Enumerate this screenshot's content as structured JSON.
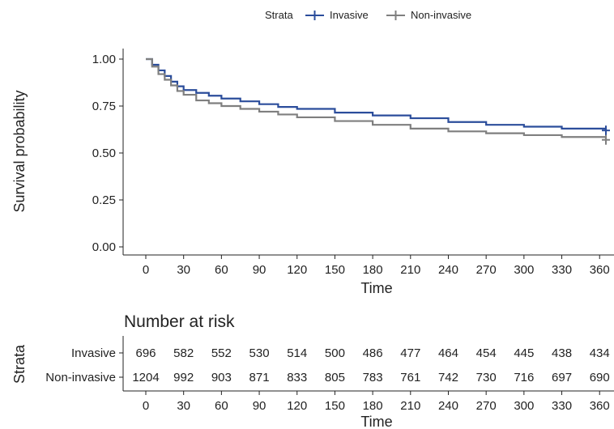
{
  "chart_data": {
    "type": "line",
    "xlabel": "Time",
    "ylabel": "Survival probability",
    "xlim": [
      0,
      365
    ],
    "ylim": [
      0,
      1
    ],
    "x_ticks": [
      0,
      30,
      60,
      90,
      120,
      150,
      180,
      210,
      240,
      270,
      300,
      330,
      360
    ],
    "y_ticks": [
      "0.00",
      "0.25",
      "0.50",
      "0.75",
      "1.00"
    ],
    "grid": false,
    "legend": {
      "title": "Strata",
      "position": "top",
      "entries": [
        "Invasive",
        "Non-invasive"
      ]
    },
    "series": [
      {
        "name": "Invasive",
        "color": "#2b4d9b",
        "x": [
          0,
          5,
          10,
          15,
          20,
          25,
          30,
          40,
          50,
          60,
          75,
          90,
          105,
          120,
          150,
          180,
          210,
          240,
          270,
          300,
          330,
          365
        ],
        "y": [
          1.0,
          0.97,
          0.94,
          0.91,
          0.88,
          0.855,
          0.835,
          0.82,
          0.805,
          0.79,
          0.775,
          0.76,
          0.745,
          0.735,
          0.715,
          0.7,
          0.685,
          0.665,
          0.65,
          0.64,
          0.63,
          0.62
        ]
      },
      {
        "name": "Non-invasive",
        "color": "#7f7f7f",
        "x": [
          0,
          5,
          10,
          15,
          20,
          25,
          30,
          40,
          50,
          60,
          75,
          90,
          105,
          120,
          150,
          180,
          210,
          240,
          270,
          300,
          330,
          365
        ],
        "y": [
          1.0,
          0.96,
          0.92,
          0.89,
          0.86,
          0.83,
          0.81,
          0.78,
          0.765,
          0.75,
          0.735,
          0.72,
          0.705,
          0.69,
          0.67,
          0.65,
          0.63,
          0.615,
          0.605,
          0.595,
          0.585,
          0.57
        ]
      }
    ],
    "risk_table": {
      "title": "Number at risk",
      "ylabel": "Strata",
      "xlabel": "Time",
      "times": [
        0,
        30,
        60,
        90,
        120,
        150,
        180,
        210,
        240,
        270,
        300,
        330,
        360
      ],
      "rows": [
        {
          "name": "Invasive",
          "color": "#2b4d9b",
          "values": [
            696,
            582,
            552,
            530,
            514,
            500,
            486,
            477,
            464,
            454,
            445,
            438,
            434
          ]
        },
        {
          "name": "Non-invasive",
          "color": "#7f7f7f",
          "values": [
            1204,
            992,
            903,
            871,
            833,
            805,
            783,
            761,
            742,
            730,
            716,
            697,
            690
          ]
        }
      ]
    }
  }
}
